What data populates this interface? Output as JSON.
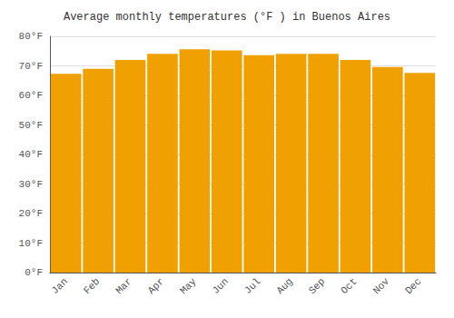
{
  "chart_data": {
    "type": "bar",
    "title": "Average monthly temperatures (°F ) in Buenos Aires",
    "categories": [
      "Jan",
      "Feb",
      "Mar",
      "Apr",
      "May",
      "Jun",
      "Jul",
      "Aug",
      "Sep",
      "Oct",
      "Nov",
      "Dec"
    ],
    "values": [
      67.3,
      69.0,
      72.0,
      74.1,
      75.6,
      75.2,
      73.6,
      74.1,
      74.1,
      72.0,
      69.6,
      67.6
    ],
    "color": "#F0A000",
    "ylim": [
      0,
      80
    ],
    "yticks": [
      {
        "value": 0,
        "label": "0°F"
      },
      {
        "value": 10,
        "label": "10°F"
      },
      {
        "value": 20,
        "label": "20°F"
      },
      {
        "value": 30,
        "label": "30°F"
      },
      {
        "value": 40,
        "label": "40°F"
      },
      {
        "value": 50,
        "label": "50°F"
      },
      {
        "value": 60,
        "label": "60°F"
      },
      {
        "value": 70,
        "label": "70°F"
      },
      {
        "value": 80,
        "label": "80°F"
      }
    ],
    "grid": true
  }
}
